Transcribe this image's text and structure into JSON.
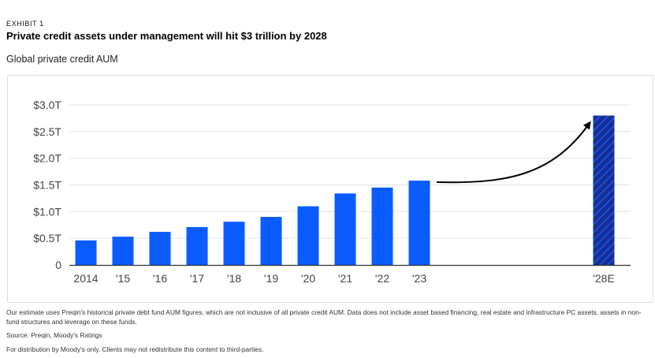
{
  "header": {
    "exhibit": "EXHIBIT 1",
    "title": "Private credit assets under management will hit $3 trillion by 2028",
    "subtitle": "Global private credit AUM"
  },
  "footnotes": {
    "note": "Our estimate uses Preqin's historical private debt fund AUM figures, which are not inclusive of all private credit AUM. Data does not include asset based financing, real estate and infrastructure PC assets, assets in non-fund structures and leverage on these funds.",
    "source": "Source: Preqin, Moody's Ratings",
    "distribution": "For distribution by Moody's only. Clients may not redistribute this content to third-parties."
  },
  "colors": {
    "bar": "#0a5cff",
    "estimate_bar": "#1a2d8f",
    "estimate_hatch": "#0a5cff",
    "arrow": "#000000",
    "grid": "#e3e3e3",
    "axis": "#333333"
  },
  "chart_data": {
    "type": "bar",
    "title": "Global private credit AUM",
    "categories": [
      "2014",
      "'15",
      "'16",
      "'17",
      "'18",
      "'19",
      "'20",
      "'21",
      "'22",
      "'23",
      "'28E"
    ],
    "values": [
      0.46,
      0.53,
      0.62,
      0.71,
      0.81,
      0.9,
      1.1,
      1.34,
      1.45,
      1.58,
      2.8
    ],
    "estimate_index": 10,
    "unit": "trillion USD",
    "ylim": [
      0,
      3.0
    ],
    "yticks": [
      0,
      0.5,
      1.0,
      1.5,
      2.0,
      2.5,
      3.0
    ],
    "ytick_labels": [
      "0",
      "$0.5T",
      "$1.0T",
      "$1.5T",
      "$2.0T",
      "$2.5T",
      "$3.0T"
    ],
    "grid": true,
    "legend": "none",
    "annotation": "curved arrow from 2023 to 2028E"
  }
}
